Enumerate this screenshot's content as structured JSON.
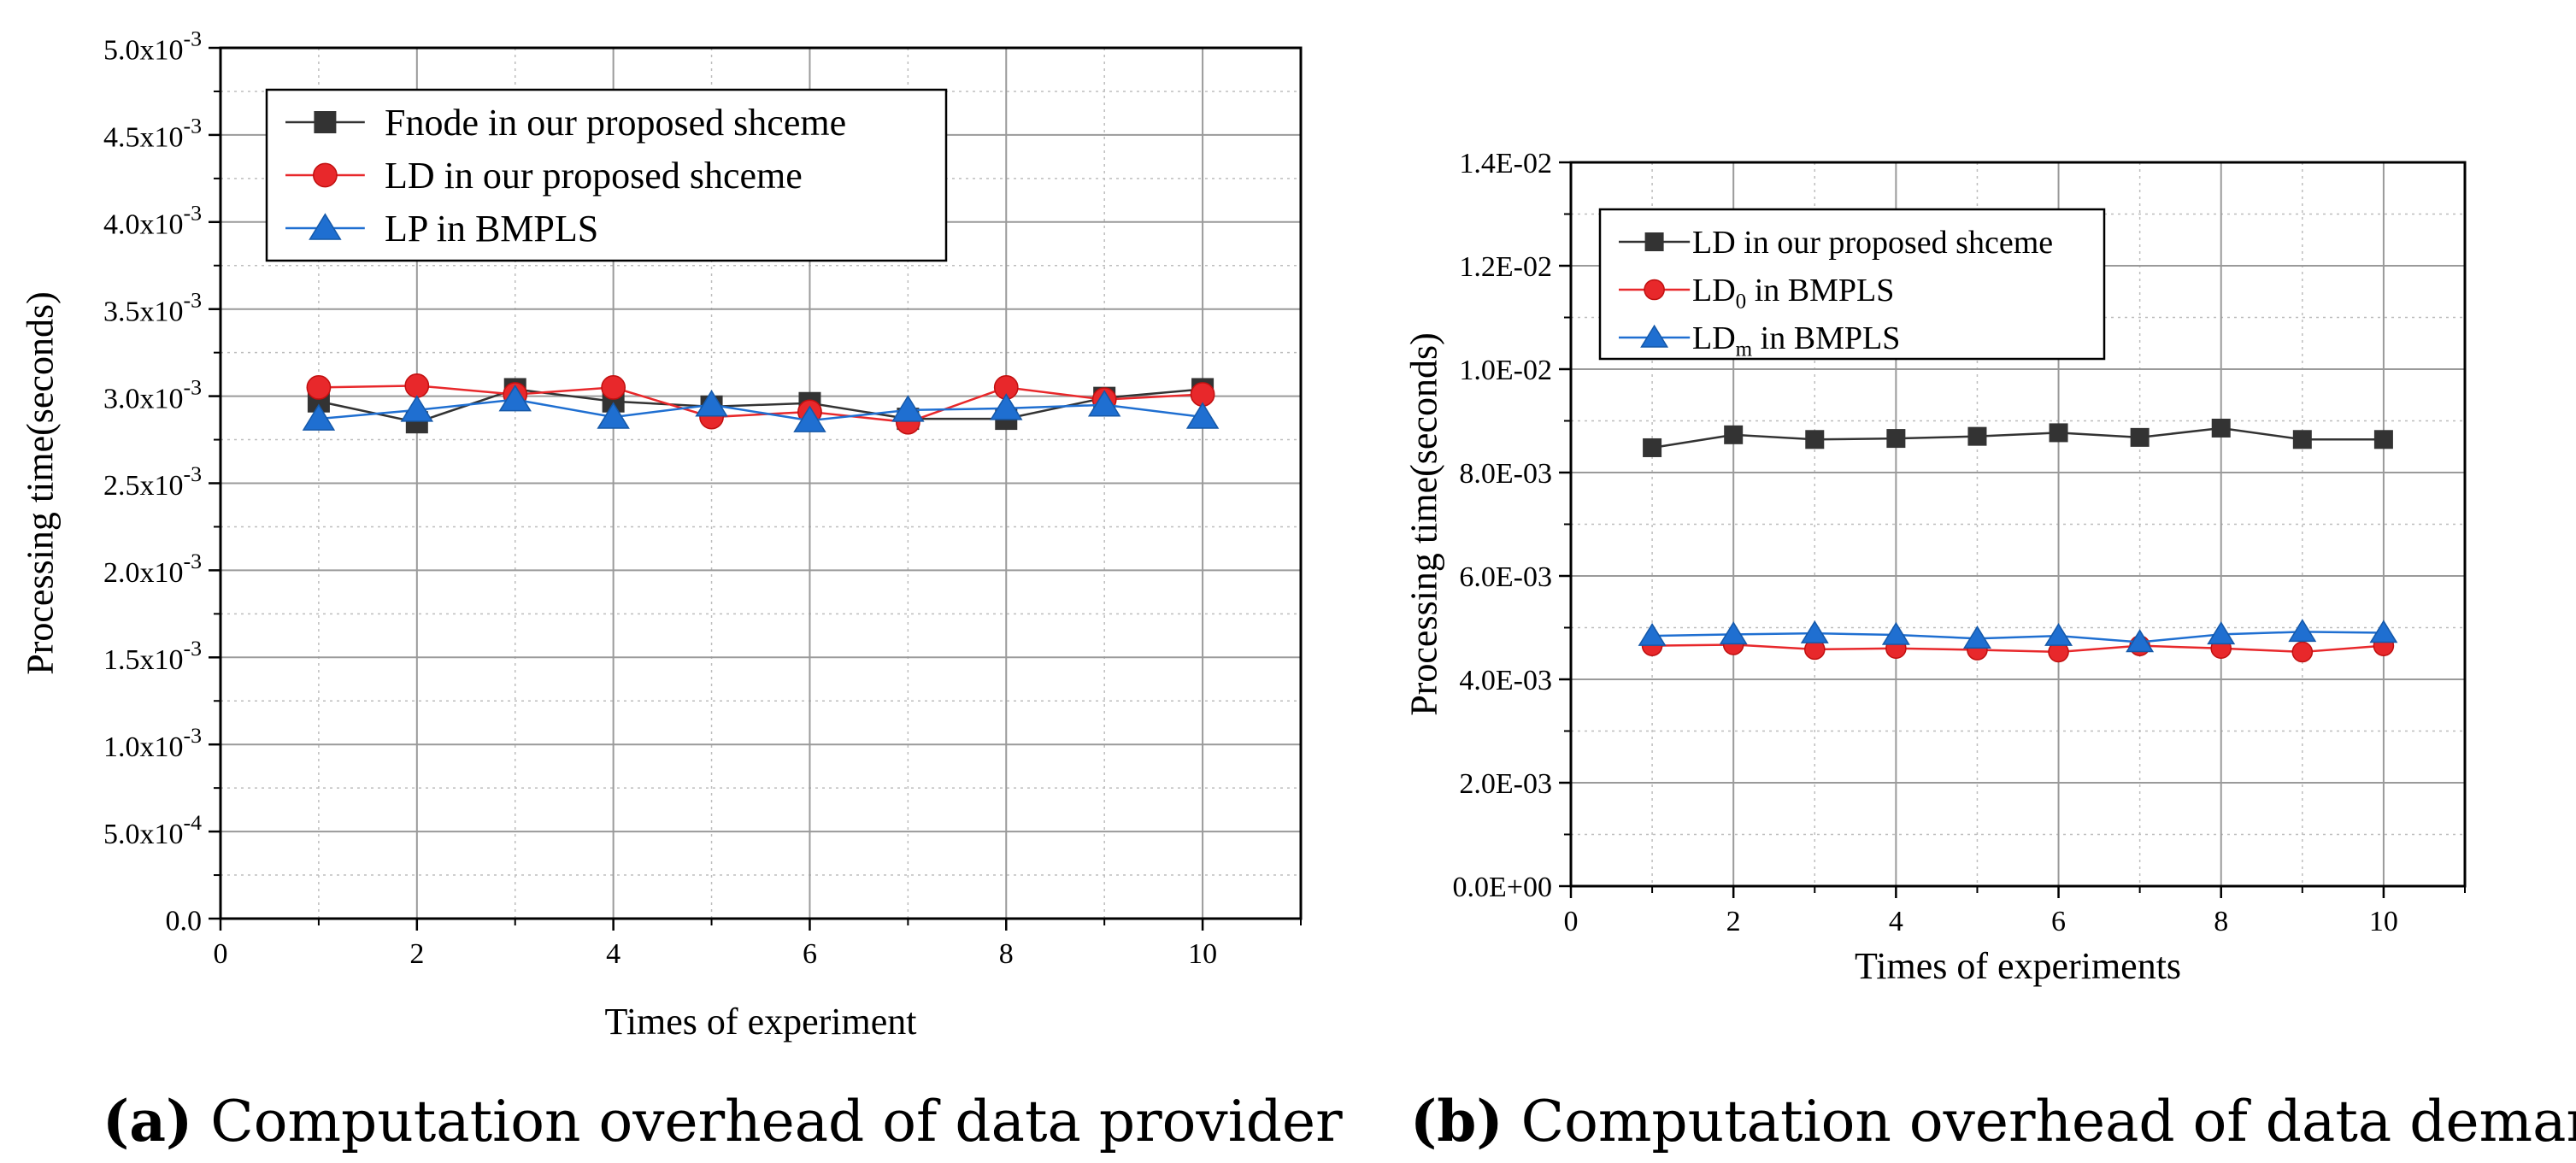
{
  "chart_data": [
    {
      "type": "line",
      "caption_tag": "(a)",
      "caption": "Computation overhead of data provider",
      "xlabel": "Times of experiment",
      "ylabel": "Processing time(seconds)",
      "xlim": [
        0,
        11
      ],
      "ylim": [
        0,
        0.005
      ],
      "x_ticks": [
        0,
        2,
        4,
        6,
        8,
        10
      ],
      "x_tick_labels": [
        "0",
        "2",
        "4",
        "6",
        "8",
        "10"
      ],
      "y_ticks": [
        0,
        0.0005,
        0.001,
        0.0015,
        0.002,
        0.0025,
        0.003,
        0.0035,
        0.004,
        0.0045,
        0.005
      ],
      "y_tick_labels": [
        {
          "mant": "0.0",
          "exp": ""
        },
        {
          "mant": "5.0x10",
          "exp": "-4"
        },
        {
          "mant": "1.0x10",
          "exp": "-3"
        },
        {
          "mant": "1.5x10",
          "exp": "-3"
        },
        {
          "mant": "2.0x10",
          "exp": "-3"
        },
        {
          "mant": "2.5x10",
          "exp": "-3"
        },
        {
          "mant": "3.0x10",
          "exp": "-3"
        },
        {
          "mant": "3.5x10",
          "exp": "-3"
        },
        {
          "mant": "4.0x10",
          "exp": "-3"
        },
        {
          "mant": "4.5x10",
          "exp": "-3"
        },
        {
          "mant": "5.0x10",
          "exp": "-3"
        }
      ],
      "grid": true,
      "legend_position": "top-left",
      "x": [
        1,
        2,
        3,
        4,
        5,
        6,
        7,
        8,
        9,
        10
      ],
      "series": [
        {
          "name": "Fnode in our proposed shceme",
          "name_parts": [
            {
              "t": "Fnode in our proposed shceme"
            }
          ],
          "marker": "square",
          "color": "#333333",
          "values": [
            0.00297,
            0.00285,
            0.00304,
            0.00297,
            0.00294,
            0.00296,
            0.00287,
            0.00287,
            0.00299,
            0.00304
          ]
        },
        {
          "name": "LD in our proposed shceme",
          "name_parts": [
            {
              "t": "LD in our proposed shceme"
            }
          ],
          "marker": "circle",
          "color": "#e8282b",
          "values": [
            0.00305,
            0.00306,
            0.00301,
            0.00305,
            0.00288,
            0.00291,
            0.00285,
            0.00305,
            0.00298,
            0.00301
          ]
        },
        {
          "name": "LP in BMPLS",
          "name_parts": [
            {
              "t": "LP in BMPLS"
            }
          ],
          "marker": "triangle",
          "color": "#1f6fd1",
          "values": [
            0.00287,
            0.00292,
            0.00298,
            0.00288,
            0.00295,
            0.00286,
            0.00292,
            0.00293,
            0.00295,
            0.00288
          ]
        }
      ]
    },
    {
      "type": "line",
      "caption_tag": "(b)",
      "caption": "Computation overhead of data demander",
      "xlabel": "Times of experiments",
      "ylabel": "Processing time(seconds)",
      "xlim": [
        0,
        11
      ],
      "ylim": [
        0,
        0.014
      ],
      "x_ticks": [
        0,
        2,
        4,
        6,
        8,
        10
      ],
      "x_tick_labels": [
        "0",
        "2",
        "4",
        "6",
        "8",
        "10"
      ],
      "y_ticks": [
        0,
        0.002,
        0.004,
        0.006,
        0.008,
        0.01,
        0.012,
        0.014
      ],
      "y_tick_labels": [
        {
          "mant": "0.0E+00",
          "exp": ""
        },
        {
          "mant": "2.0E-03",
          "exp": ""
        },
        {
          "mant": "4.0E-03",
          "exp": ""
        },
        {
          "mant": "6.0E-03",
          "exp": ""
        },
        {
          "mant": "8.0E-03",
          "exp": ""
        },
        {
          "mant": "1.0E-02",
          "exp": ""
        },
        {
          "mant": "1.2E-02",
          "exp": ""
        },
        {
          "mant": "1.4E-02",
          "exp": ""
        }
      ],
      "grid": true,
      "legend_position": "top-left",
      "x": [
        1,
        2,
        3,
        4,
        5,
        6,
        7,
        8,
        9,
        10
      ],
      "series": [
        {
          "name": "LD in our proposed shceme",
          "name_parts": [
            {
              "t": "LD in our proposed shceme"
            }
          ],
          "marker": "square",
          "color": "#333333",
          "values": [
            0.00848,
            0.00873,
            0.00864,
            0.00866,
            0.0087,
            0.00877,
            0.00868,
            0.00886,
            0.00864,
            0.00864
          ]
        },
        {
          "name": "LD0 in BMPLS",
          "name_parts": [
            {
              "t": "LD"
            },
            {
              "t": "0",
              "sub": true
            },
            {
              "t": " in BMPLS"
            }
          ],
          "marker": "circle",
          "color": "#e8282b",
          "values": [
            0.00465,
            0.00467,
            0.00458,
            0.0046,
            0.00457,
            0.00453,
            0.00465,
            0.0046,
            0.00453,
            0.00465
          ]
        },
        {
          "name": "LDm in BMPLS",
          "name_parts": [
            {
              "t": "LD"
            },
            {
              "t": "m",
              "sub": true
            },
            {
              "t": " in BMPLS"
            }
          ],
          "marker": "triangle",
          "color": "#1f6fd1",
          "values": [
            0.00484,
            0.00487,
            0.00489,
            0.00486,
            0.00479,
            0.00484,
            0.00472,
            0.00487,
            0.00492,
            0.0049
          ]
        }
      ]
    }
  ]
}
